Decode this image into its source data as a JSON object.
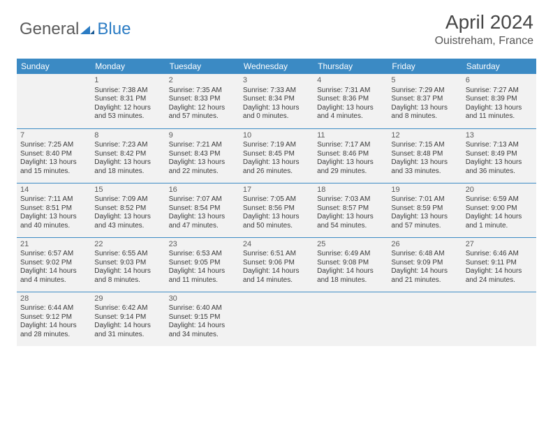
{
  "logo": {
    "part1": "General",
    "part2": "Blue"
  },
  "title": "April 2024",
  "location": "Ouistreham, France",
  "colors": {
    "header_bg": "#3b8ac4",
    "header_text": "#ffffff",
    "cell_bg": "#f2f2f2",
    "border": "#3b8ac4",
    "text": "#333333",
    "logo_grey": "#5a5a5a",
    "logo_blue": "#2b7cc4"
  },
  "day_headers": [
    "Sunday",
    "Monday",
    "Tuesday",
    "Wednesday",
    "Thursday",
    "Friday",
    "Saturday"
  ],
  "weeks": [
    [
      null,
      {
        "n": "1",
        "sr": "7:38 AM",
        "ss": "8:31 PM",
        "dl": "12 hours and 53 minutes."
      },
      {
        "n": "2",
        "sr": "7:35 AM",
        "ss": "8:33 PM",
        "dl": "12 hours and 57 minutes."
      },
      {
        "n": "3",
        "sr": "7:33 AM",
        "ss": "8:34 PM",
        "dl": "13 hours and 0 minutes."
      },
      {
        "n": "4",
        "sr": "7:31 AM",
        "ss": "8:36 PM",
        "dl": "13 hours and 4 minutes."
      },
      {
        "n": "5",
        "sr": "7:29 AM",
        "ss": "8:37 PM",
        "dl": "13 hours and 8 minutes."
      },
      {
        "n": "6",
        "sr": "7:27 AM",
        "ss": "8:39 PM",
        "dl": "13 hours and 11 minutes."
      }
    ],
    [
      {
        "n": "7",
        "sr": "7:25 AM",
        "ss": "8:40 PM",
        "dl": "13 hours and 15 minutes."
      },
      {
        "n": "8",
        "sr": "7:23 AM",
        "ss": "8:42 PM",
        "dl": "13 hours and 18 minutes."
      },
      {
        "n": "9",
        "sr": "7:21 AM",
        "ss": "8:43 PM",
        "dl": "13 hours and 22 minutes."
      },
      {
        "n": "10",
        "sr": "7:19 AM",
        "ss": "8:45 PM",
        "dl": "13 hours and 26 minutes."
      },
      {
        "n": "11",
        "sr": "7:17 AM",
        "ss": "8:46 PM",
        "dl": "13 hours and 29 minutes."
      },
      {
        "n": "12",
        "sr": "7:15 AM",
        "ss": "8:48 PM",
        "dl": "13 hours and 33 minutes."
      },
      {
        "n": "13",
        "sr": "7:13 AM",
        "ss": "8:49 PM",
        "dl": "13 hours and 36 minutes."
      }
    ],
    [
      {
        "n": "14",
        "sr": "7:11 AM",
        "ss": "8:51 PM",
        "dl": "13 hours and 40 minutes."
      },
      {
        "n": "15",
        "sr": "7:09 AM",
        "ss": "8:52 PM",
        "dl": "13 hours and 43 minutes."
      },
      {
        "n": "16",
        "sr": "7:07 AM",
        "ss": "8:54 PM",
        "dl": "13 hours and 47 minutes."
      },
      {
        "n": "17",
        "sr": "7:05 AM",
        "ss": "8:56 PM",
        "dl": "13 hours and 50 minutes."
      },
      {
        "n": "18",
        "sr": "7:03 AM",
        "ss": "8:57 PM",
        "dl": "13 hours and 54 minutes."
      },
      {
        "n": "19",
        "sr": "7:01 AM",
        "ss": "8:59 PM",
        "dl": "13 hours and 57 minutes."
      },
      {
        "n": "20",
        "sr": "6:59 AM",
        "ss": "9:00 PM",
        "dl": "14 hours and 1 minute."
      }
    ],
    [
      {
        "n": "21",
        "sr": "6:57 AM",
        "ss": "9:02 PM",
        "dl": "14 hours and 4 minutes."
      },
      {
        "n": "22",
        "sr": "6:55 AM",
        "ss": "9:03 PM",
        "dl": "14 hours and 8 minutes."
      },
      {
        "n": "23",
        "sr": "6:53 AM",
        "ss": "9:05 PM",
        "dl": "14 hours and 11 minutes."
      },
      {
        "n": "24",
        "sr": "6:51 AM",
        "ss": "9:06 PM",
        "dl": "14 hours and 14 minutes."
      },
      {
        "n": "25",
        "sr": "6:49 AM",
        "ss": "9:08 PM",
        "dl": "14 hours and 18 minutes."
      },
      {
        "n": "26",
        "sr": "6:48 AM",
        "ss": "9:09 PM",
        "dl": "14 hours and 21 minutes."
      },
      {
        "n": "27",
        "sr": "6:46 AM",
        "ss": "9:11 PM",
        "dl": "14 hours and 24 minutes."
      }
    ],
    [
      {
        "n": "28",
        "sr": "6:44 AM",
        "ss": "9:12 PM",
        "dl": "14 hours and 28 minutes."
      },
      {
        "n": "29",
        "sr": "6:42 AM",
        "ss": "9:14 PM",
        "dl": "14 hours and 31 minutes."
      },
      {
        "n": "30",
        "sr": "6:40 AM",
        "ss": "9:15 PM",
        "dl": "14 hours and 34 minutes."
      },
      null,
      null,
      null,
      null
    ]
  ],
  "labels": {
    "sunrise": "Sunrise:",
    "sunset": "Sunset:",
    "daylight": "Daylight:"
  }
}
